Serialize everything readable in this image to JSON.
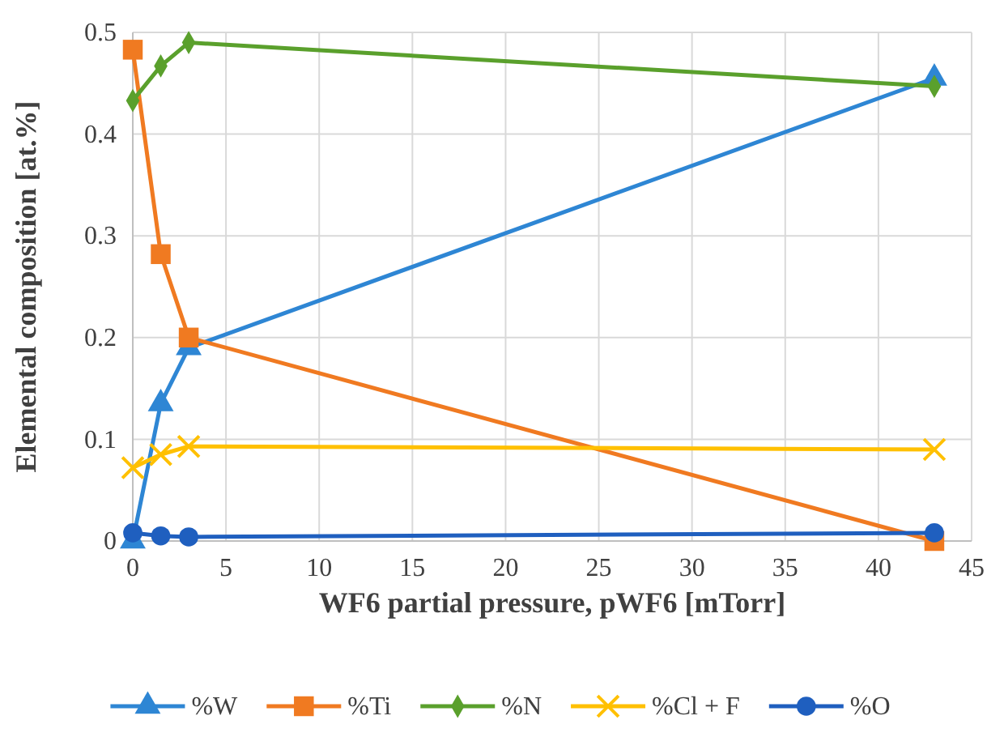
{
  "chart_data": {
    "type": "line",
    "xlabel": "WF6 partial pressure, pWF6 [mTorr]",
    "ylabel": "Elemental composition [at.%]",
    "x": [
      0,
      1.5,
      3,
      43
    ],
    "series": [
      {
        "name": "%W",
        "color": "#2e86d4",
        "marker": "triangle",
        "values": [
          0,
          0.135,
          0.19,
          0.455
        ]
      },
      {
        "name": "%Ti",
        "color": "#f07a21",
        "marker": "square",
        "values": [
          0.483,
          0.282,
          0.2,
          0
        ]
      },
      {
        "name": "%N",
        "color": "#5aa02c",
        "marker": "diamond",
        "values": [
          0.433,
          0.467,
          0.49,
          0.447
        ]
      },
      {
        "name": "%Cl + F",
        "color": "#ffc000",
        "marker": "cross",
        "values": [
          0.072,
          0.085,
          0.093,
          0.09
        ]
      },
      {
        "name": "%O",
        "color": "#1f5fbf",
        "marker": "circle",
        "values": [
          0.008,
          0.005,
          0.004,
          0.008
        ]
      }
    ],
    "xlim": [
      0,
      45
    ],
    "xticks": [
      0,
      5,
      10,
      15,
      20,
      25,
      30,
      35,
      40,
      45
    ],
    "ylim": [
      0,
      0.5
    ],
    "yticks": [
      0,
      0.1,
      0.2,
      0.3,
      0.4,
      0.5
    ],
    "grid": true,
    "legend": "bottom",
    "line_style": "solid"
  }
}
